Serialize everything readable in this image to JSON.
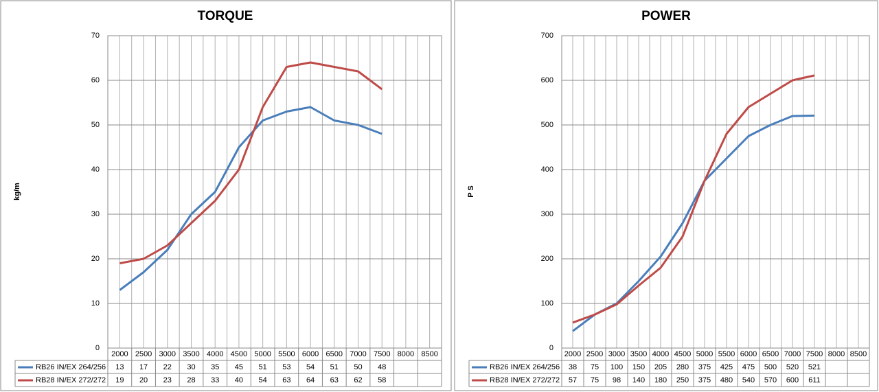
{
  "chart_data": [
    {
      "type": "line",
      "title": "TORQUE",
      "y_label": "kg/m",
      "categories": [
        "2000",
        "2500",
        "3000",
        "3500",
        "4000",
        "4500",
        "5000",
        "5500",
        "6000",
        "6500",
        "7000",
        "7500",
        "8000",
        "8500"
      ],
      "series": [
        {
          "name": "RB26 IN/EX 264/256",
          "color": "#4a7ebb",
          "values": [
            13,
            17,
            22,
            30,
            35,
            45,
            51,
            53,
            54,
            51,
            50,
            48,
            null,
            null
          ]
        },
        {
          "name": "RB28 IN/EX 272/272",
          "color": "#be4b48",
          "values": [
            19,
            20,
            23,
            28,
            33,
            40,
            54,
            63,
            64,
            63,
            62,
            58,
            null,
            null
          ]
        }
      ],
      "ylim": [
        0,
        70
      ],
      "yticks": [
        0,
        10,
        20,
        30,
        40,
        50,
        60,
        70
      ],
      "grid": true
    },
    {
      "type": "line",
      "title": "POWER",
      "y_label": "P S",
      "categories": [
        "2000",
        "2500",
        "3000",
        "3500",
        "4000",
        "4500",
        "5000",
        "5500",
        "6000",
        "6500",
        "7000",
        "7500",
        "8000",
        "8500"
      ],
      "series": [
        {
          "name": "RB26 IN/EX 264/256",
          "color": "#4a7ebb",
          "values": [
            38,
            75,
            100,
            150,
            205,
            280,
            375,
            425,
            475,
            500,
            520,
            521,
            null,
            null
          ]
        },
        {
          "name": "RB28 IN/EX 272/272",
          "color": "#be4b48",
          "values": [
            57,
            75,
            98,
            140,
            180,
            250,
            375,
            480,
            540,
            570,
            600,
            611,
            null,
            null
          ]
        }
      ],
      "ylim": [
        0,
        700
      ],
      "yticks": [
        0,
        100,
        200,
        300,
        400,
        500,
        600,
        700
      ],
      "grid": true
    }
  ]
}
